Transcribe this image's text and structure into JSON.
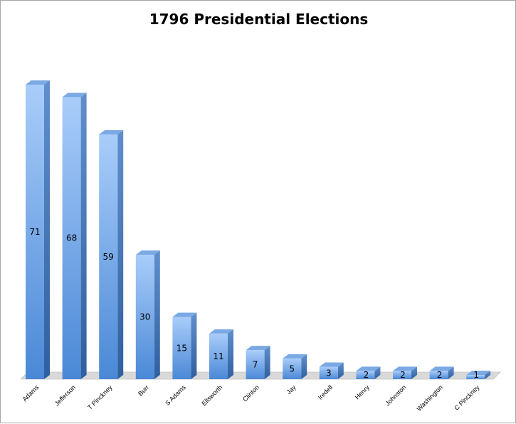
{
  "chart_data": {
    "type": "bar",
    "title": "1796 Presidential Elections",
    "xlabel": "",
    "ylabel": "",
    "categories": [
      "Adams",
      "Jefferson",
      "T Pinckney",
      "Burr",
      "S Adams",
      "Ellsworth",
      "Clinton",
      "Jay",
      "Iredell",
      "Henry",
      "Johnston",
      "Washington",
      "C Pinckney"
    ],
    "values": [
      71,
      68,
      59,
      30,
      15,
      11,
      7,
      5,
      3,
      2,
      2,
      2,
      1
    ],
    "ylim": [
      0,
      71
    ],
    "grid": false,
    "legend": "none",
    "data_labels": "inside-bar",
    "style": "3d-column",
    "colors": {
      "bar_top": "#a9cdfa",
      "bar_bottom": "#4a88d6",
      "bar_side": "#3f72b3",
      "bar_cap": "#7aa9e3",
      "floor": "#d9d9d9"
    }
  }
}
